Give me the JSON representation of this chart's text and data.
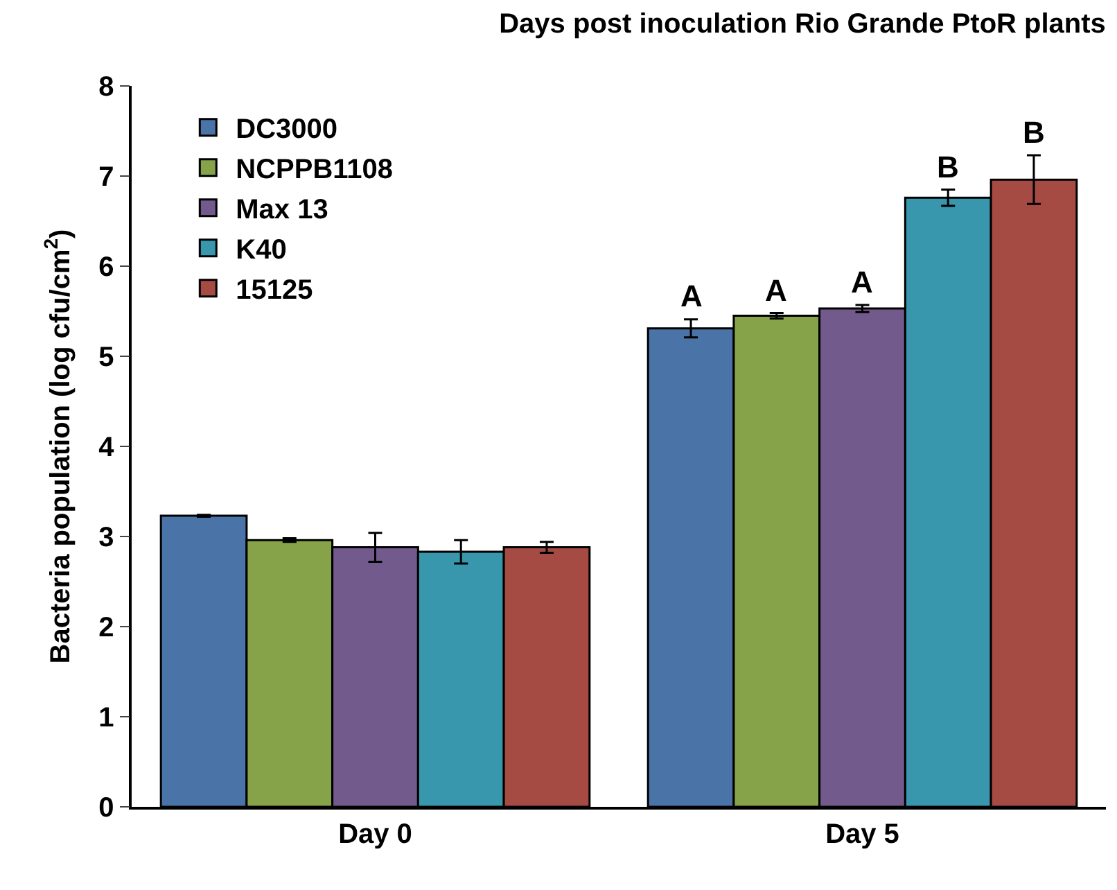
{
  "chart_data": {
    "type": "bar",
    "title": "Days post inoculation Rio Grande PtoR plants",
    "ylabel": "Bacteria population (log cfu/cm$^{2}$)",
    "categories": [
      "Day 0",
      "Day 5"
    ],
    "series": [
      {
        "name": "DC3000",
        "color": "#4a74a8",
        "values": [
          3.23,
          5.31
        ],
        "errors": [
          0.01,
          0.1
        ],
        "value_labels": [
          null,
          "A"
        ]
      },
      {
        "name": "NCPPB1108",
        "color": "#86a34a",
        "values": [
          2.96,
          5.45
        ],
        "errors": [
          0.02,
          0.03
        ],
        "value_labels": [
          null,
          "A"
        ]
      },
      {
        "name": "Max 13",
        "color": "#735a8c",
        "values": [
          2.88,
          5.53
        ],
        "errors": [
          0.16,
          0.04
        ],
        "value_labels": [
          null,
          "A"
        ]
      },
      {
        "name": "K40",
        "color": "#3896ad",
        "values": [
          2.83,
          6.76
        ],
        "errors": [
          0.13,
          0.09
        ],
        "value_labels": [
          null,
          "B"
        ]
      },
      {
        "name": "15125",
        "color": "#a64a44",
        "values": [
          2.88,
          6.96
        ],
        "errors": [
          0.06,
          0.27
        ],
        "value_labels": [
          null,
          "B"
        ]
      }
    ],
    "ylim": [
      0,
      8
    ],
    "yticks": [
      0,
      1,
      2,
      3,
      4,
      5,
      6,
      7,
      8
    ],
    "legend": "top left"
  }
}
